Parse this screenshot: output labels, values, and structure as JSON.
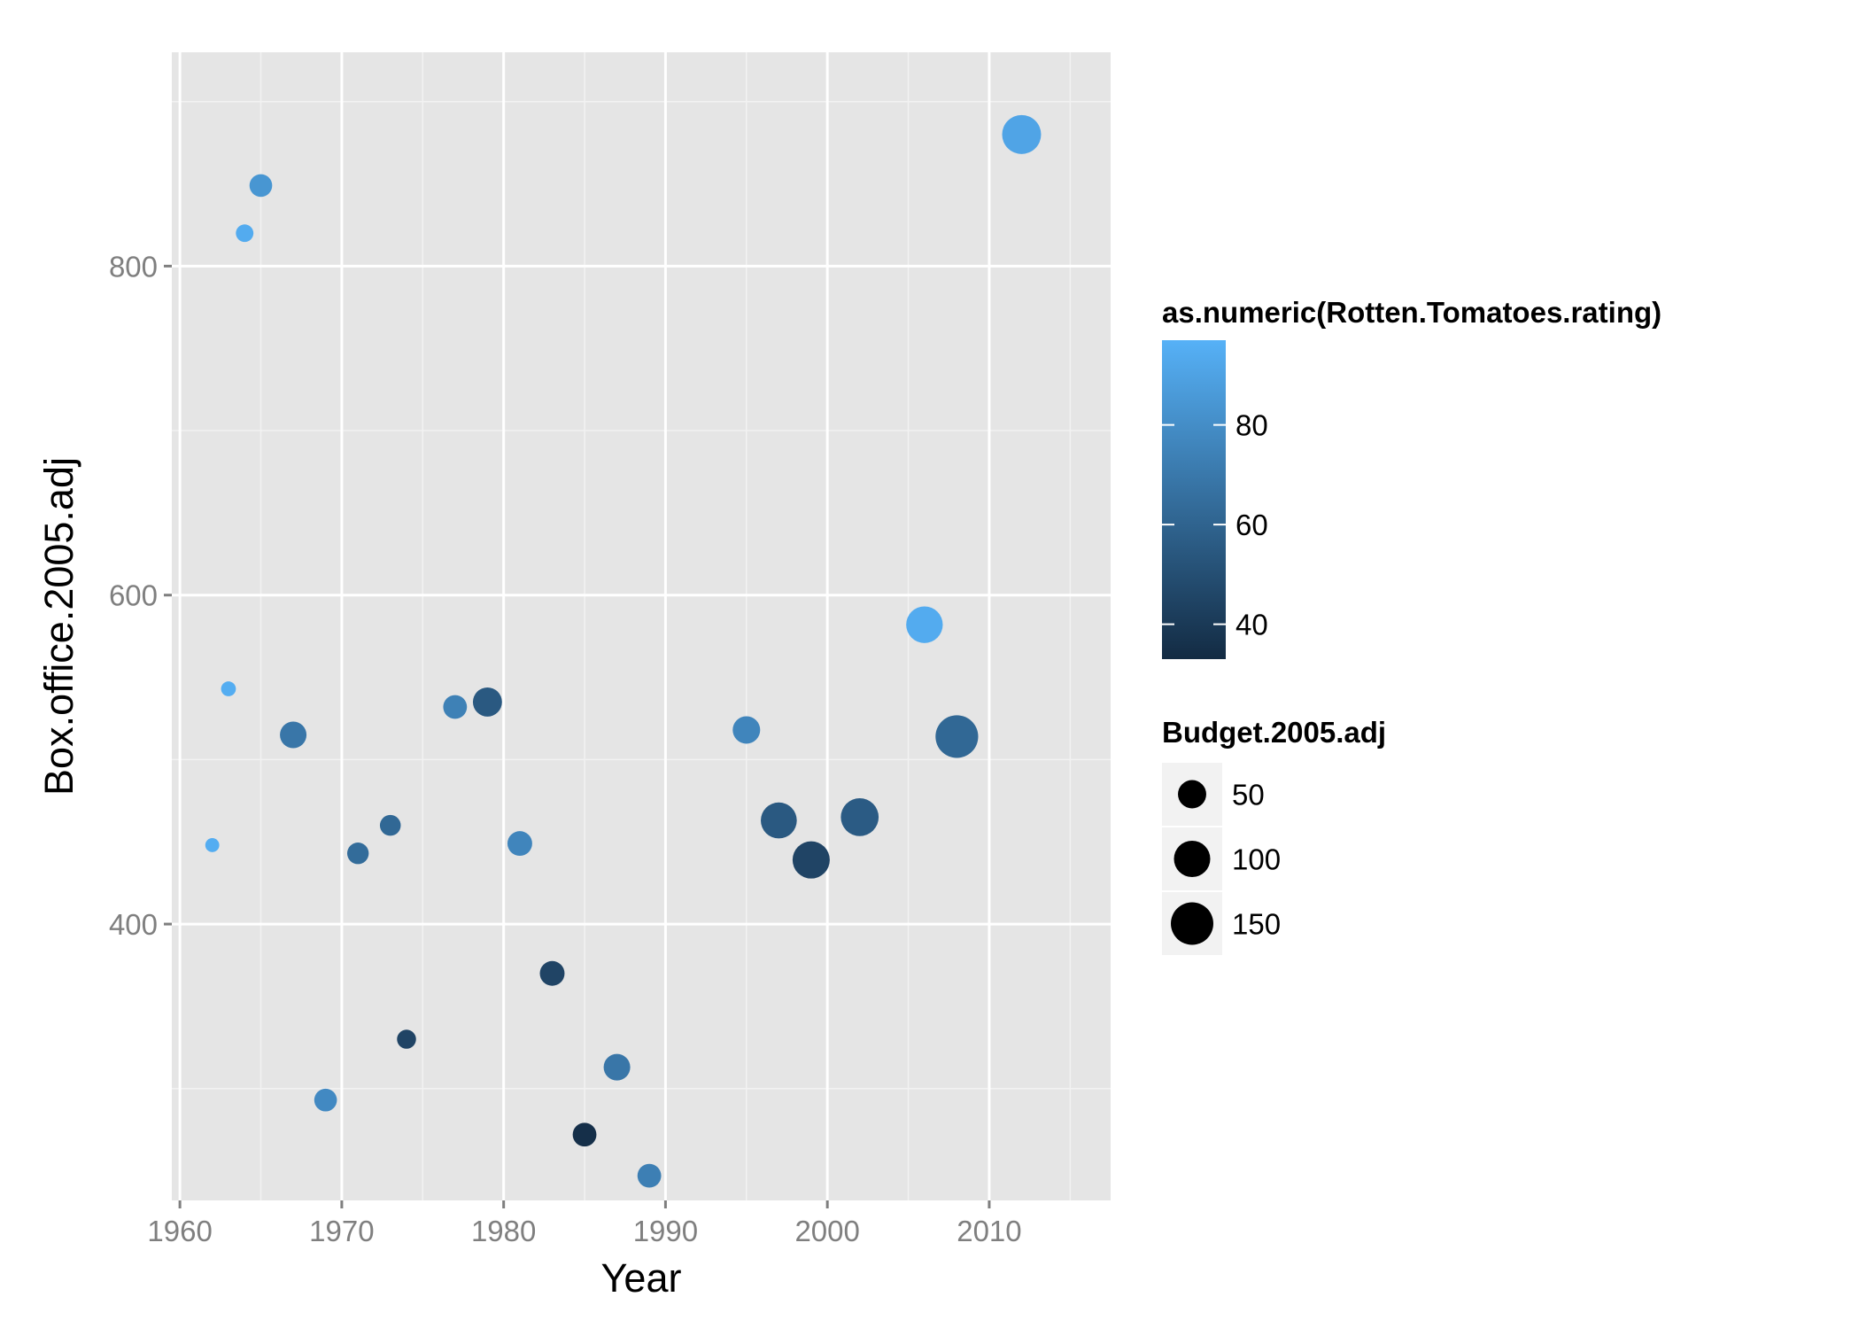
{
  "chart_data": {
    "type": "scatter",
    "xlabel": "Year",
    "ylabel": "Box.office.2005.adj",
    "xlim": [
      1959.5,
      2017.5
    ],
    "ylim": [
      232,
      930
    ],
    "x_ticks": [
      1960,
      1970,
      1980,
      1990,
      2000,
      2010
    ],
    "x_tick_labels": [
      "1960",
      "1970",
      "1980",
      "1990",
      "2000",
      "2010"
    ],
    "y_ticks": [
      400,
      600,
      800
    ],
    "y_tick_labels": [
      "400",
      "600",
      "800"
    ],
    "grid": true,
    "background": "#e5e5e5",
    "color_legend": {
      "title": "as.numeric(Rotten.Tomatoes.rating)",
      "range": [
        33,
        97
      ],
      "ticks": [
        40,
        60,
        80
      ],
      "tick_labels": [
        "40",
        "60",
        "80"
      ],
      "low_color": "#132b43",
      "high_color": "#56b1f7"
    },
    "size_legend": {
      "title": "Budget.2005.adj",
      "values": [
        50,
        100,
        150
      ],
      "labels": [
        "50",
        "100",
        "150"
      ],
      "key_color": "#000000"
    },
    "points": [
      {
        "x": 1962,
        "y": 448,
        "color": 95,
        "size": 10
      },
      {
        "x": 1963,
        "y": 543,
        "color": 95,
        "size": 12
      },
      {
        "x": 1964,
        "y": 820,
        "color": 94,
        "size": 20
      },
      {
        "x": 1965,
        "y": 849,
        "color": 84,
        "size": 40
      },
      {
        "x": 1967,
        "y": 515,
        "color": 69,
        "size": 60
      },
      {
        "x": 1969,
        "y": 293,
        "color": 78,
        "size": 40
      },
      {
        "x": 1971,
        "y": 443,
        "color": 64,
        "size": 35
      },
      {
        "x": 1973,
        "y": 460,
        "color": 62,
        "size": 32
      },
      {
        "x": 1974,
        "y": 330,
        "color": 45,
        "size": 25
      },
      {
        "x": 1977,
        "y": 532,
        "color": 74,
        "size": 45
      },
      {
        "x": 1979,
        "y": 535,
        "color": 55,
        "size": 75
      },
      {
        "x": 1981,
        "y": 449,
        "color": 76,
        "size": 50
      },
      {
        "x": 1983,
        "y": 370,
        "color": 45,
        "size": 50
      },
      {
        "x": 1985,
        "y": 272,
        "color": 35,
        "size": 45
      },
      {
        "x": 1987,
        "y": 313,
        "color": 69,
        "size": 60
      },
      {
        "x": 1989,
        "y": 247,
        "color": 73,
        "size": 45
      },
      {
        "x": 1995,
        "y": 518,
        "color": 76,
        "size": 65
      },
      {
        "x": 1997,
        "y": 463,
        "color": 55,
        "size": 125
      },
      {
        "x": 1999,
        "y": 439,
        "color": 45,
        "size": 135
      },
      {
        "x": 2002,
        "y": 465,
        "color": 56,
        "size": 140
      },
      {
        "x": 2006,
        "y": 582,
        "color": 94,
        "size": 130
      },
      {
        "x": 2008,
        "y": 514,
        "color": 62,
        "size": 185
      },
      {
        "x": 2012,
        "y": 880,
        "color": 91,
        "size": 150
      }
    ]
  }
}
